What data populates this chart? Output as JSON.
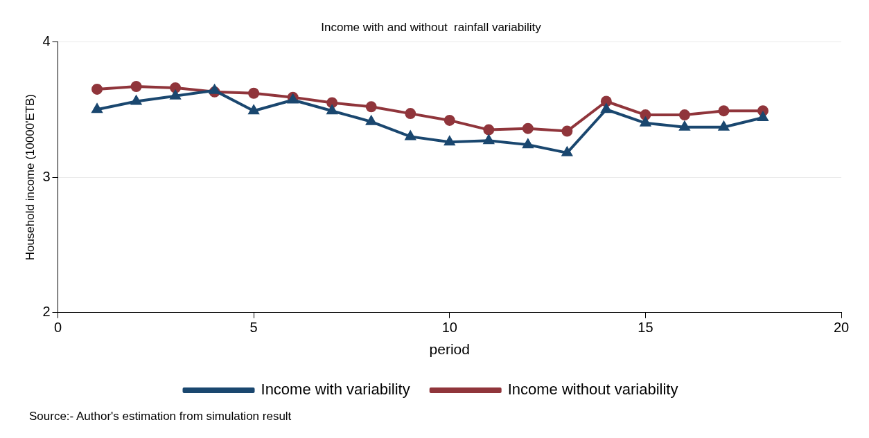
{
  "chart_data": {
    "type": "line",
    "title": "Income with and without  rainfall variability",
    "xlabel": "period",
    "ylabel": "Household income (10000'ETB)",
    "x": [
      1,
      2,
      3,
      4,
      5,
      6,
      7,
      8,
      9,
      10,
      11,
      12,
      13,
      14,
      15,
      16,
      17,
      18
    ],
    "series": [
      {
        "name": "Income with variability",
        "color": "#1a476f",
        "marker": "triangle",
        "values": [
          3.5,
          3.56,
          3.6,
          3.64,
          3.49,
          3.57,
          3.49,
          3.41,
          3.3,
          3.26,
          3.27,
          3.24,
          3.18,
          3.5,
          3.4,
          3.37,
          3.37,
          3.44
        ]
      },
      {
        "name": "Income without variability",
        "color": "#90353b",
        "marker": "circle",
        "values": [
          3.65,
          3.67,
          3.66,
          3.63,
          3.62,
          3.59,
          3.55,
          3.52,
          3.47,
          3.42,
          3.35,
          3.36,
          3.34,
          3.56,
          3.46,
          3.46,
          3.49,
          3.49
        ]
      }
    ],
    "xlim": [
      0,
      20
    ],
    "xticks": [
      0,
      5,
      10,
      15,
      20
    ],
    "ylim": [
      2,
      4
    ],
    "yticks": [
      2,
      3,
      4
    ],
    "grid": "y",
    "legend": "bottom",
    "line_style": "solid",
    "annotations": [
      "Source:- Author's estimation from simulation result"
    ]
  }
}
